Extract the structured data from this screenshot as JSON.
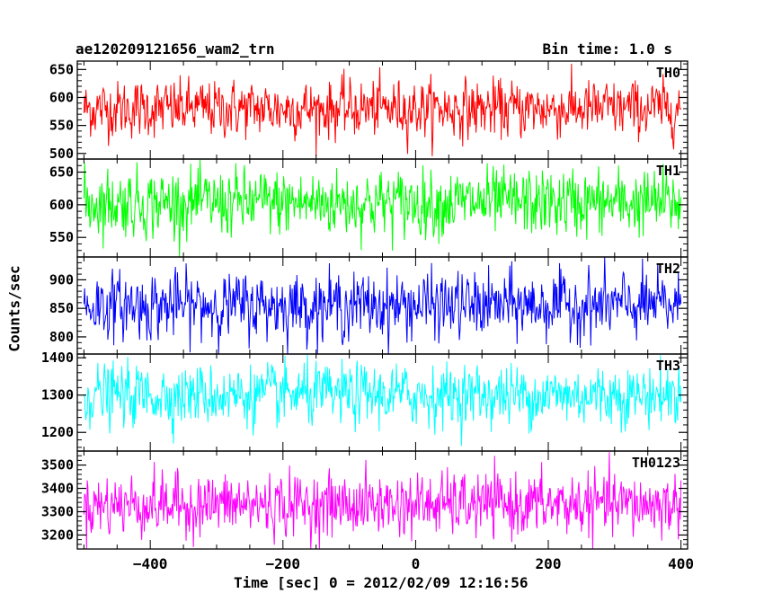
{
  "chart_data": {
    "type": "line",
    "title": "ae120209121656_wam2_trn",
    "subtitle": "Bin time: 1.0 s",
    "xlabel": "Time [sec] 0 = 2012/02/09 12:16:56",
    "ylabel": "Counts/sec",
    "xlim": [
      -510,
      410
    ],
    "xticks": [
      -400,
      -200,
      0,
      200,
      400
    ],
    "x_range_data": [
      -500,
      400
    ],
    "bin_time": 1.0,
    "panels": [
      {
        "name": "TH0",
        "color": "#ff0000",
        "ylim": [
          490,
          665
        ],
        "yticks": [
          500,
          550,
          600,
          650
        ],
        "mean": 580,
        "std": 25,
        "min_data": 495,
        "max_data": 665
      },
      {
        "name": "TH1",
        "color": "#00ff00",
        "ylim": [
          520,
          670
        ],
        "yticks": [
          550,
          600,
          650
        ],
        "mean": 603,
        "std": 25,
        "min_data": 520,
        "max_data": 670
      },
      {
        "name": "TH2",
        "color": "#0000ff",
        "ylim": [
          770,
          940
        ],
        "yticks": [
          800,
          850,
          900
        ],
        "mean": 855,
        "std": 28,
        "min_data": 770,
        "max_data": 940
      },
      {
        "name": "TH3",
        "color": "#00ffff",
        "ylim": [
          1150,
          1410
        ],
        "yticks": [
          1200,
          1300,
          1400
        ],
        "mean": 1300,
        "std": 40,
        "min_data": 1150,
        "max_data": 1410
      },
      {
        "name": "TH0123",
        "color": "#ff00ff",
        "ylim": [
          3140,
          3560
        ],
        "yticks": [
          3200,
          3300,
          3400,
          3500
        ],
        "mean": 3330,
        "std": 65,
        "min_data": 3140,
        "max_data": 3560
      }
    ]
  }
}
